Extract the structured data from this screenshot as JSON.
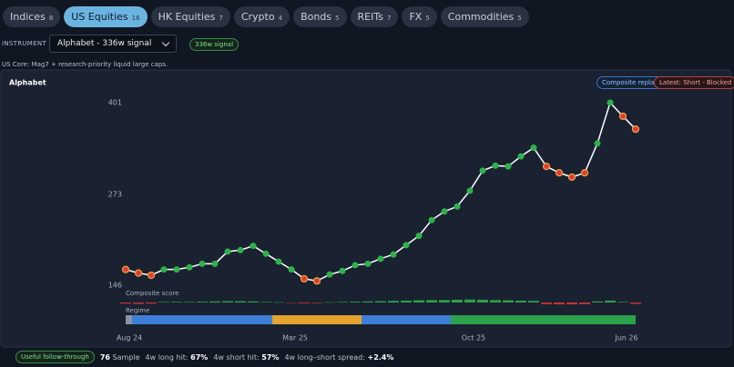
{
  "tabs": [
    {
      "label": "Indices",
      "count": 8
    },
    {
      "label": "US Equities",
      "count": 16
    },
    {
      "label": "HK Equities",
      "count": 7
    },
    {
      "label": "Crypto",
      "count": 4
    },
    {
      "label": "Bonds",
      "count": 5
    },
    {
      "label": "REITs",
      "count": 7
    },
    {
      "label": "FX",
      "count": 5
    },
    {
      "label": "Commodities",
      "count": 5
    }
  ],
  "active_tab": 1,
  "instrument": {
    "label": "INSTRUMENT",
    "selected": "Alphabet - 336w signal",
    "badge": "336w signal"
  },
  "universe_note": "US Core: Mag7 + research-priority liquid large caps.",
  "panel": {
    "title": "Alphabet",
    "badges": [
      "Composite replay",
      "Latest: Short - Blocked"
    ]
  },
  "chart_data": {
    "type": "line",
    "categories": [
      "Aug 24",
      null,
      null,
      null,
      null,
      null,
      null,
      null,
      null,
      null,
      null,
      null,
      null,
      "Mar 25",
      null,
      null,
      null,
      null,
      null,
      null,
      null,
      null,
      null,
      null,
      null,
      null,
      null,
      "Oct 25",
      null,
      null,
      null,
      null,
      null,
      null,
      null,
      null,
      null,
      null,
      null,
      "Jun 26",
      null
    ],
    "series": [
      {
        "color": "#ffffff",
        "values": [
          168,
          163,
          160,
          168,
          168,
          171,
          176,
          176,
          193,
          195,
          201,
          190,
          179,
          168,
          155,
          152,
          161,
          166,
          174,
          176,
          183,
          189,
          202,
          215,
          237,
          249,
          256,
          278,
          306,
          313,
          312,
          326,
          338,
          312,
          303,
          297,
          303,
          344,
          401,
          382,
          364
        ],
        "marker_colors": [
          "#e03a3a",
          "#e03a3a",
          "#e03a3a",
          "#2db34a",
          "#2db34a",
          "#2db34a",
          "#2db34a",
          "#2db34a",
          "#2db34a",
          "#2db34a",
          "#2db34a",
          "#2db34a",
          "#2db34a",
          "#2db34a",
          "#e03a3a",
          "#e03a3a",
          "#2db34a",
          "#2db34a",
          "#2db34a",
          "#2db34a",
          "#2db34a",
          "#2db34a",
          "#2db34a",
          "#2db34a",
          "#2db34a",
          "#2db34a",
          "#2db34a",
          "#2db34a",
          "#2db34a",
          "#2db34a",
          "#2db34a",
          "#2db34a",
          "#2db34a",
          "#e03a3a",
          "#e03a3a",
          "#e03a3a",
          "#e03a3a",
          "#2db34a",
          "#2db34a",
          "#e03a3a",
          "#e03a3a"
        ]
      }
    ],
    "ylim": [
      146,
      401
    ],
    "yticks": [
      146,
      273,
      401
    ],
    "composite_score": {
      "label": "Composite score",
      "lim": [
        -1,
        1
      ],
      "values": [
        -0.2,
        -0.25,
        -0.2,
        0.1,
        0.12,
        0.1,
        0.15,
        0.2,
        0.25,
        0.25,
        0.2,
        0.1,
        0.05,
        -0.05,
        -0.15,
        -0.1,
        0.05,
        0.1,
        0.15,
        0.2,
        0.25,
        0.3,
        0.35,
        0.4,
        0.45,
        0.45,
        0.5,
        0.55,
        0.5,
        0.45,
        0.4,
        0.35,
        0.3,
        -0.3,
        -0.35,
        -0.35,
        -0.3,
        0.2,
        0.35,
        0.1,
        -0.25
      ]
    },
    "regime": {
      "label": "Regime",
      "segments": [
        {
          "color": "#8a94a6",
          "span": 1
        },
        {
          "color": "#3f7fd9",
          "span": 11
        },
        {
          "color": "#e5a42f",
          "span": 7
        },
        {
          "color": "#3f7fd9",
          "span": 7
        },
        {
          "color": "#2aa14a",
          "span": 15
        }
      ]
    }
  },
  "footer": {
    "badge": "Useful follow-through",
    "stats": [
      {
        "value": "76",
        "label": "Sample"
      },
      {
        "label": "4w long hit:",
        "value": "67%"
      },
      {
        "label": "4w short hit:",
        "value": "57%"
      },
      {
        "label": "4w long–short spread:",
        "value": "+2.4%"
      }
    ]
  }
}
